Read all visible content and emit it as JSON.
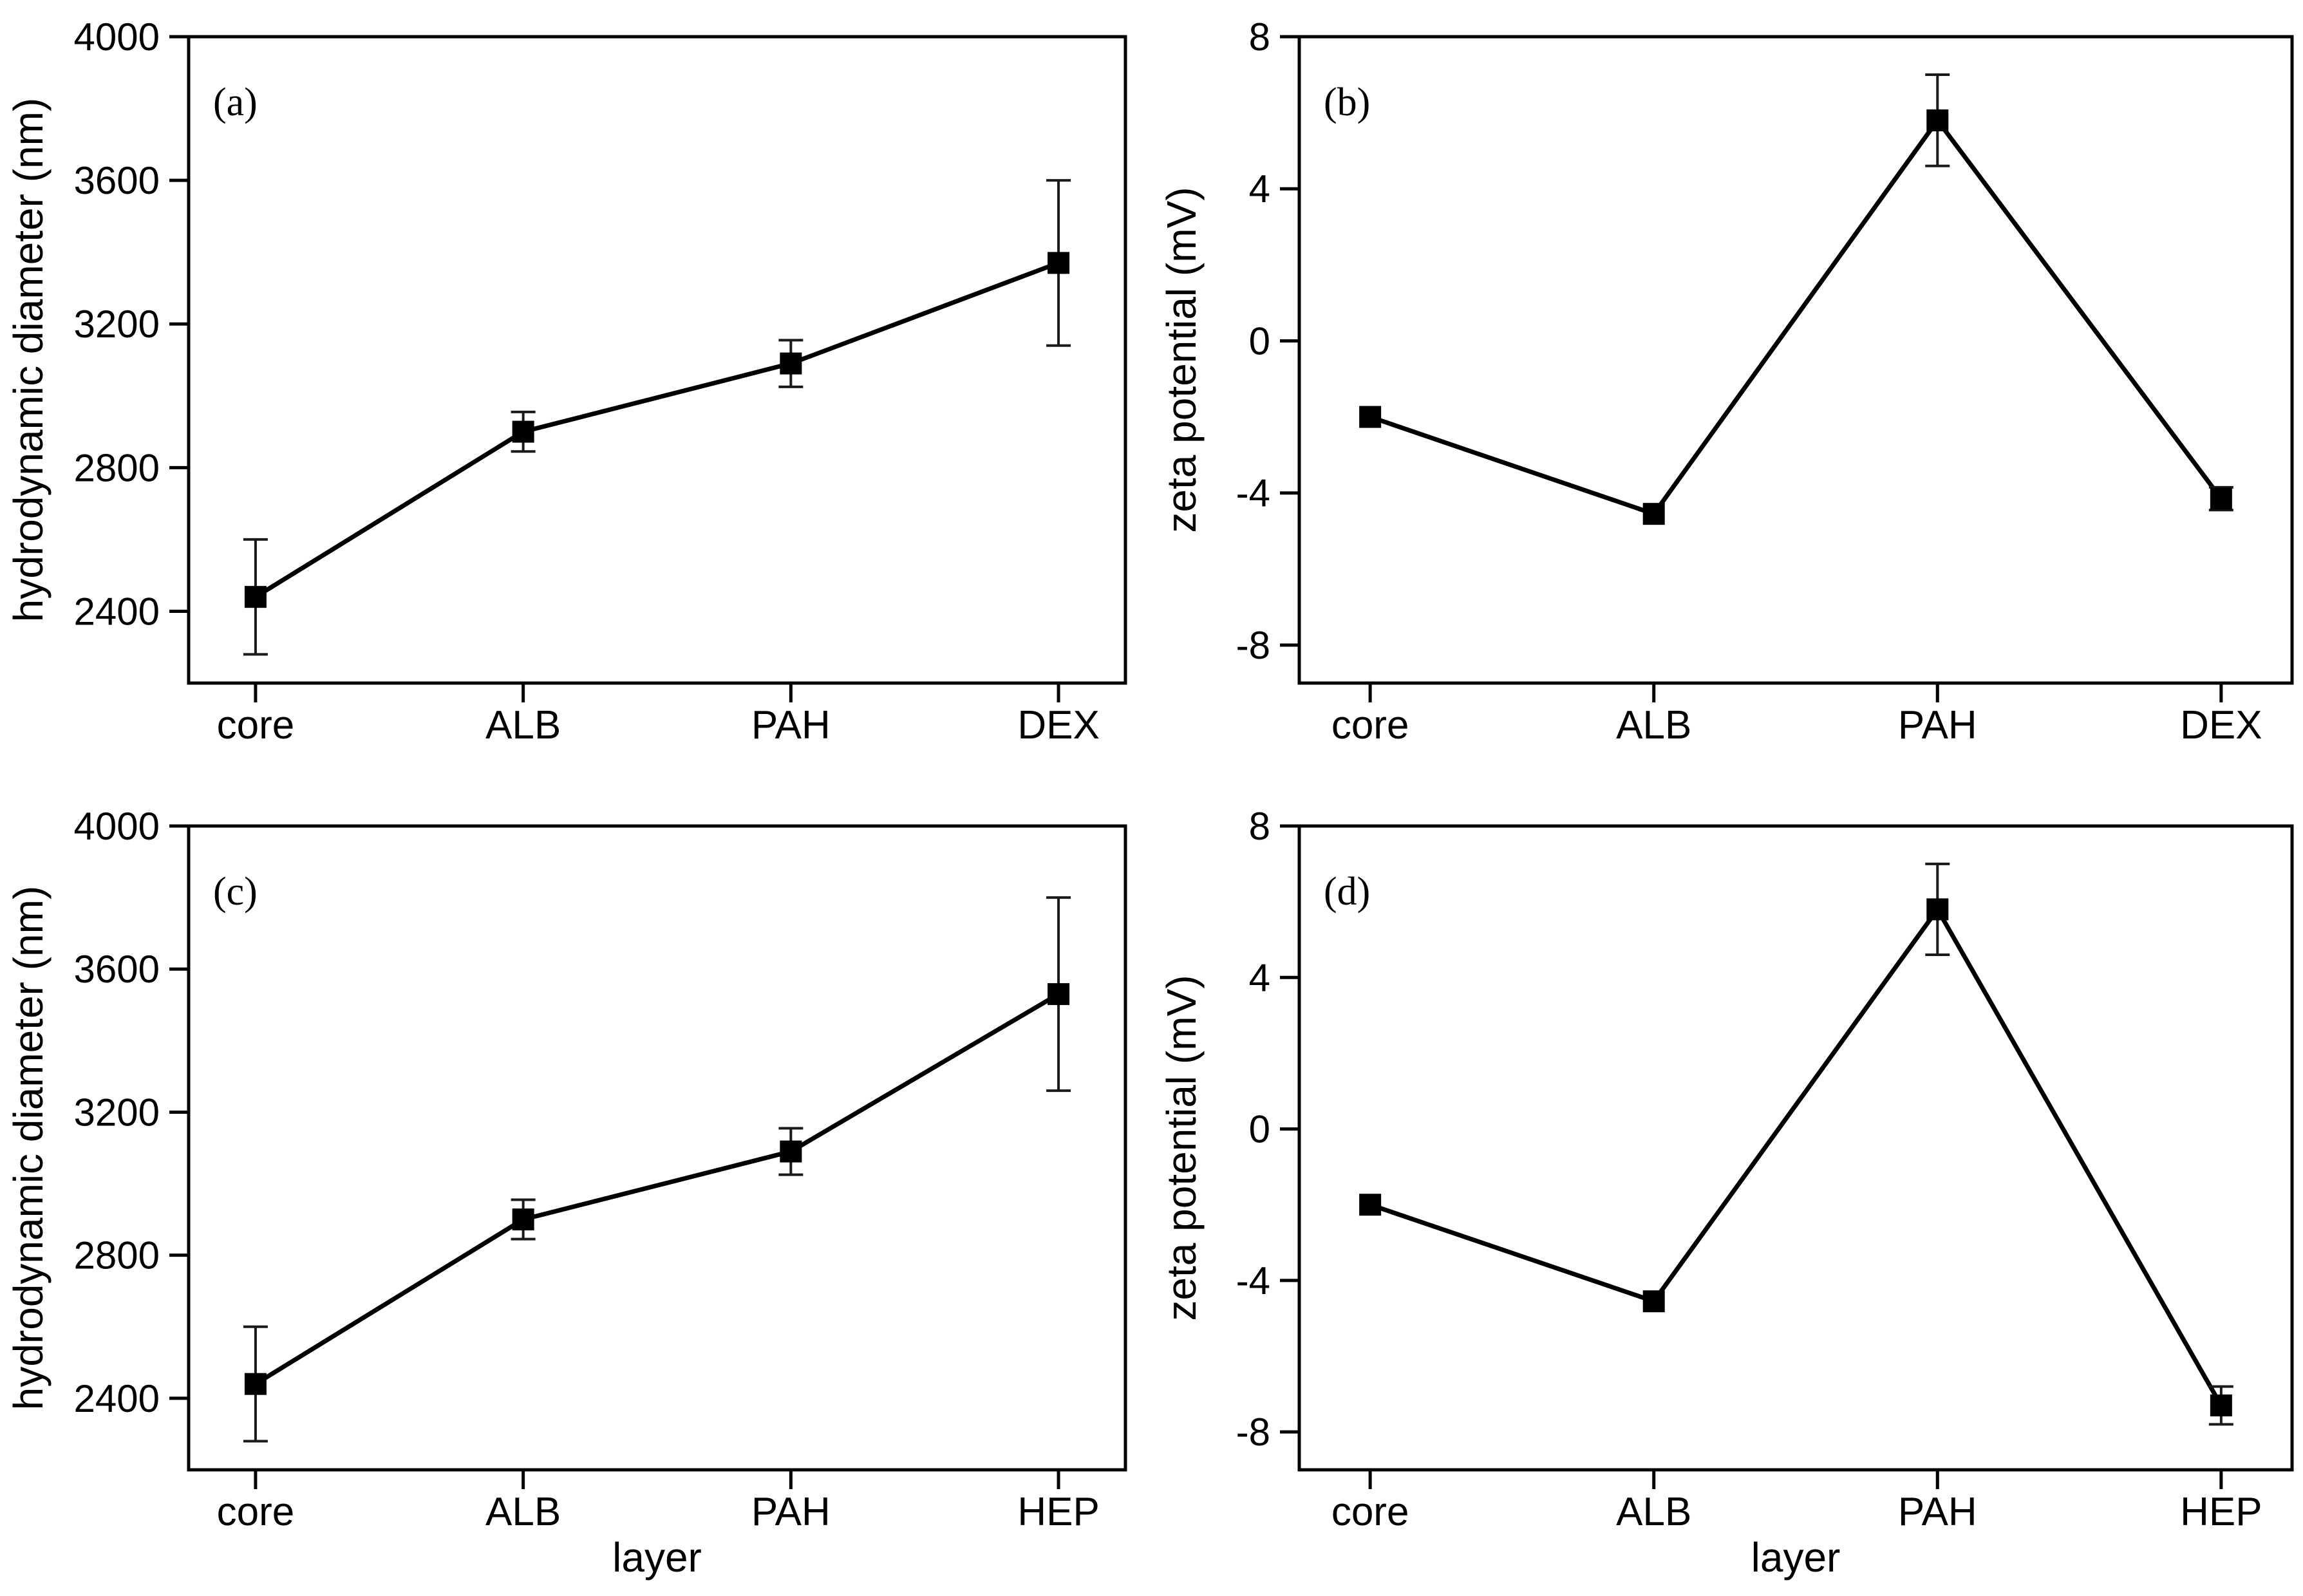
{
  "figure": {
    "background_color": "#ffffff",
    "line_color": "#000000",
    "marker_color": "#000000",
    "error_bar_color": "#1a1a1a",
    "marker_shape": "filled-square"
  },
  "chart_data": [
    {
      "type": "line",
      "panel_label": "(a)",
      "ylabel": "hydrodynamic diameter (nm)",
      "xlabel": "",
      "categories": [
        "core",
        "ALB",
        "PAH",
        "DEX"
      ],
      "values": [
        2440,
        2900,
        3090,
        3370
      ],
      "errors": [
        160,
        55,
        65,
        230
      ],
      "yticks": [
        4000,
        3600,
        3200,
        2800,
        2400
      ],
      "ylim": [
        2200,
        4000
      ],
      "xlim": [
        0.75,
        4.25
      ],
      "grid": false,
      "legend": null
    },
    {
      "type": "line",
      "panel_label": "(b)",
      "ylabel": "zeta potential (mV)",
      "xlabel": "",
      "categories": [
        "core",
        "ALB",
        "PAH",
        "DEX"
      ],
      "values": [
        -2.0,
        -4.55,
        5.8,
        -4.15
      ],
      "errors": [
        0,
        0,
        1.2,
        0.3
      ],
      "yticks": [
        8,
        4,
        0,
        -4,
        -8
      ],
      "ylim": [
        -9,
        8
      ],
      "xlim": [
        0.75,
        4.25
      ],
      "grid": false,
      "legend": null
    },
    {
      "type": "line",
      "panel_label": "(c)",
      "ylabel": "hydrodynamic diameter (nm)",
      "xlabel": "layer",
      "categories": [
        "core",
        "ALB",
        "PAH",
        "HEP"
      ],
      "values": [
        2440,
        2900,
        3090,
        3530
      ],
      "errors": [
        160,
        55,
        65,
        270
      ],
      "yticks": [
        4000,
        3600,
        3200,
        2800,
        2400
      ],
      "ylim": [
        2200,
        4000
      ],
      "xlim": [
        0.75,
        4.25
      ],
      "grid": false,
      "legend": null
    },
    {
      "type": "line",
      "panel_label": "(d)",
      "ylabel": "zeta potential (mV)",
      "xlabel": "layer",
      "categories": [
        "core",
        "ALB",
        "PAH",
        "HEP"
      ],
      "values": [
        -2.0,
        -4.55,
        5.8,
        -7.3
      ],
      "errors": [
        0,
        0,
        1.2,
        0.5
      ],
      "yticks": [
        8,
        4,
        0,
        -4,
        -8
      ],
      "ylim": [
        -9,
        8
      ],
      "xlim": [
        0.75,
        4.25
      ],
      "grid": false,
      "legend": null
    }
  ]
}
